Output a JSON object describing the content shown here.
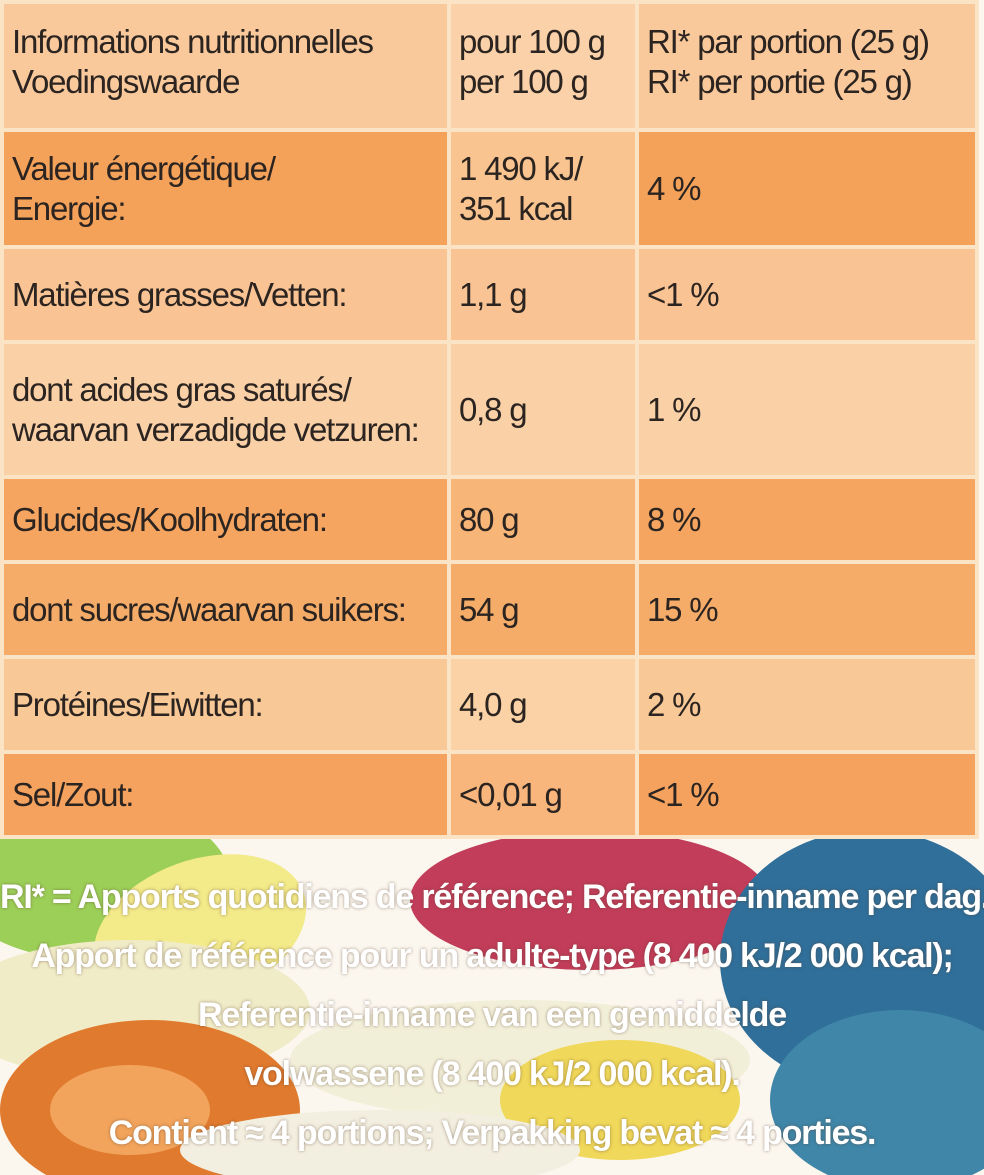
{
  "table": {
    "header": [
      [
        "Informations nutritionnelles",
        "Voedingswaarde"
      ],
      [
        "pour 100 g",
        "per 100 g"
      ],
      [
        "RI* par portion (25 g)",
        "RI* per portie (25 g)"
      ]
    ],
    "rows": [
      [
        [
          "Valeur énergétique/",
          "Energie:"
        ],
        [
          "1 490 kJ/",
          "351 kcal"
        ],
        [
          "4 %"
        ]
      ],
      [
        [
          "Matières grasses/Vetten:"
        ],
        [
          "1,1 g"
        ],
        [
          "<1 %"
        ]
      ],
      [
        [
          "dont acides gras saturés/",
          "waarvan verzadigde vetzuren:"
        ],
        [
          "0,8 g"
        ],
        [
          "1 %"
        ]
      ],
      [
        [
          "Glucides/Koolhydraten:"
        ],
        [
          "80 g"
        ],
        [
          "8 %"
        ]
      ],
      [
        [
          "dont sucres/waarvan suikers:"
        ],
        [
          "54 g"
        ],
        [
          "15 %"
        ]
      ],
      [
        [
          "Protéines/Eiwitten:"
        ],
        [
          "4,0 g"
        ],
        [
          "2 %"
        ]
      ],
      [
        [
          "Sel/Zout:"
        ],
        [
          "<0,01 g"
        ],
        [
          "<1 %"
        ]
      ]
    ]
  },
  "footnote": [
    "RI* = Apports quotidiens de référence; Referentie-inname per dag.",
    "Apport de référence pour un adulte-type (8 400 kJ/2 000 kcal);",
    "Referentie-inname van een gemiddelde",
    "volwassene (8 400 kJ/2 000 kcal).",
    "Contient ≈ 4 portions; Verpakking bevat ≈ 4 porties."
  ]
}
